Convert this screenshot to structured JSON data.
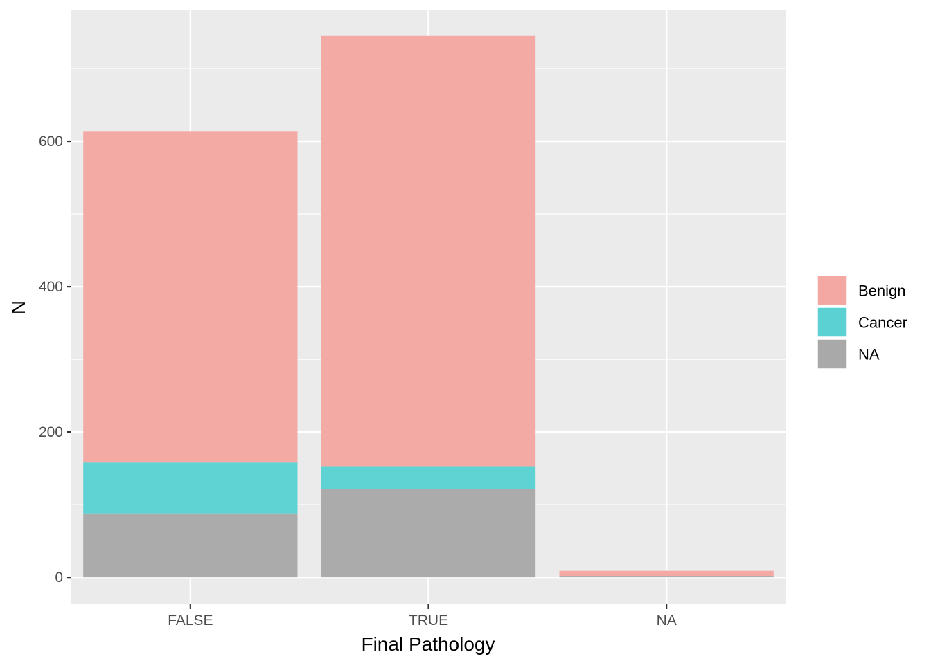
{
  "chart_data": {
    "type": "bar",
    "stacked": true,
    "title": "",
    "xlabel": "Final Pathology",
    "ylabel": "N",
    "categories": [
      "FALSE",
      "TRUE",
      "NA"
    ],
    "series": [
      {
        "name": "NA",
        "values": [
          88,
          122,
          2
        ],
        "color": "#A9A9A9"
      },
      {
        "name": "Cancer",
        "values": [
          70,
          31,
          0
        ],
        "color": "#5CD1D3"
      },
      {
        "name": "Benign",
        "values": [
          456,
          592,
          7
        ],
        "color": "#F3A8A3"
      }
    ],
    "ylim": [
      -37,
      780
    ],
    "yticks": [
      0,
      200,
      400,
      600
    ],
    "yminor": [
      100,
      300,
      500,
      700
    ],
    "grid": true,
    "legend": {
      "position": "right",
      "entries": [
        "Benign",
        "Cancer",
        "NA"
      ]
    },
    "colors": {
      "panel_background": "#EBEBEB",
      "grid": "#FFFFFF",
      "tick_text": "#4D4D4D",
      "tick_mark": "#333333"
    }
  }
}
